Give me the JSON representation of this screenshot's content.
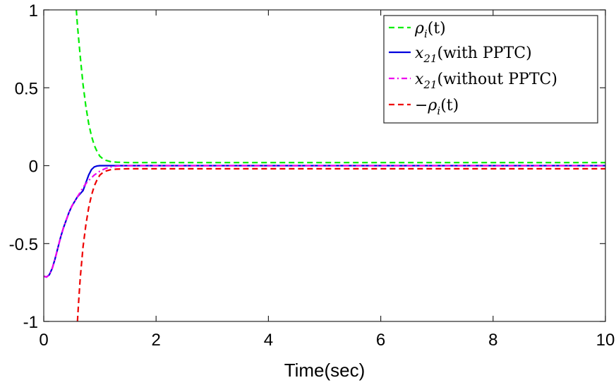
{
  "chart_data": {
    "type": "line",
    "title": "",
    "xlabel": "Time(sec)",
    "ylabel": "",
    "xlim": [
      0,
      10
    ],
    "ylim": [
      -1,
      1
    ],
    "xticks": [
      0,
      2,
      4,
      6,
      8,
      10
    ],
    "xtick_labels": [
      "0",
      "2",
      "4",
      "6",
      "8",
      "10"
    ],
    "yticks": [
      -1,
      -0.5,
      0,
      0.5,
      1
    ],
    "ytick_labels": [
      "-1",
      "-0.5",
      "0",
      "0.5",
      "1"
    ],
    "grid": false,
    "legend_position": "top-right",
    "series": [
      {
        "key": "rho",
        "name": "ρi(t)",
        "color": "#00ee00",
        "dash": "dashed",
        "x": [
          0.58,
          0.6,
          0.65,
          0.7,
          0.75,
          0.8,
          0.85,
          0.9,
          0.95,
          1.0,
          1.05,
          1.1,
          1.2,
          1.3,
          1.5,
          2,
          4,
          6,
          8,
          10
        ],
        "y": [
          1.0,
          0.9,
          0.7,
          0.52,
          0.38,
          0.27,
          0.19,
          0.13,
          0.09,
          0.06,
          0.045,
          0.035,
          0.025,
          0.022,
          0.02,
          0.02,
          0.02,
          0.02,
          0.02,
          0.02
        ]
      },
      {
        "key": "x21_with",
        "name": "x21(with PPTC)",
        "color": "#0000dd",
        "dash": "solid",
        "x": [
          0,
          0.05,
          0.1,
          0.15,
          0.2,
          0.25,
          0.3,
          0.35,
          0.4,
          0.45,
          0.5,
          0.55,
          0.6,
          0.65,
          0.7,
          0.75,
          0.8,
          0.85,
          0.9,
          0.95,
          1.0,
          1.1,
          1.2,
          1.5,
          2,
          4,
          6,
          8,
          10
        ],
        "y": [
          -0.71,
          -0.715,
          -0.7,
          -0.66,
          -0.6,
          -0.53,
          -0.46,
          -0.4,
          -0.35,
          -0.3,
          -0.26,
          -0.23,
          -0.2,
          -0.18,
          -0.16,
          -0.11,
          -0.06,
          -0.025,
          -0.008,
          -0.002,
          0.0,
          0.0,
          0.0,
          0.0,
          0.0,
          0.0,
          0.0,
          0.0,
          0.0
        ]
      },
      {
        "key": "x21_without",
        "name": "x21(without PPTC)",
        "color": "#ee00ee",
        "dash": "dashdot",
        "x": [
          0,
          0.05,
          0.1,
          0.15,
          0.2,
          0.25,
          0.3,
          0.35,
          0.4,
          0.45,
          0.5,
          0.55,
          0.6,
          0.65,
          0.7,
          0.75,
          0.8,
          0.9,
          1.0,
          1.1,
          1.2,
          1.3,
          1.5,
          2,
          4,
          6,
          8,
          10
        ],
        "y": [
          -0.71,
          -0.715,
          -0.7,
          -0.66,
          -0.6,
          -0.53,
          -0.46,
          -0.4,
          -0.35,
          -0.3,
          -0.26,
          -0.23,
          -0.2,
          -0.17,
          -0.14,
          -0.115,
          -0.095,
          -0.06,
          -0.035,
          -0.018,
          -0.008,
          -0.003,
          0.0,
          0.0,
          0.0,
          0.0,
          0.0,
          0.0
        ]
      },
      {
        "key": "neg_rho",
        "name": "−ρi(t)",
        "color": "#ee0000",
        "dash": "dashed",
        "x": [
          0.6,
          0.62,
          0.65,
          0.7,
          0.75,
          0.8,
          0.85,
          0.9,
          0.95,
          1.0,
          1.05,
          1.1,
          1.2,
          1.3,
          1.5,
          2,
          4,
          6,
          8,
          10
        ],
        "y": [
          -1.0,
          -0.88,
          -0.72,
          -0.52,
          -0.38,
          -0.27,
          -0.19,
          -0.13,
          -0.09,
          -0.06,
          -0.045,
          -0.035,
          -0.025,
          -0.022,
          -0.02,
          -0.02,
          -0.02,
          -0.02,
          -0.02,
          -0.02
        ]
      }
    ]
  },
  "legend": {
    "entries": [
      {
        "main": "ρ",
        "sub": "i",
        "rest": "(t)"
      },
      {
        "main": "x",
        "sub": "21",
        "rest": "(with PPTC)"
      },
      {
        "main": "x",
        "sub": "21",
        "rest": "(without PPTC)"
      },
      {
        "main": "−ρ",
        "sub": "i",
        "rest": "(t)"
      }
    ]
  }
}
